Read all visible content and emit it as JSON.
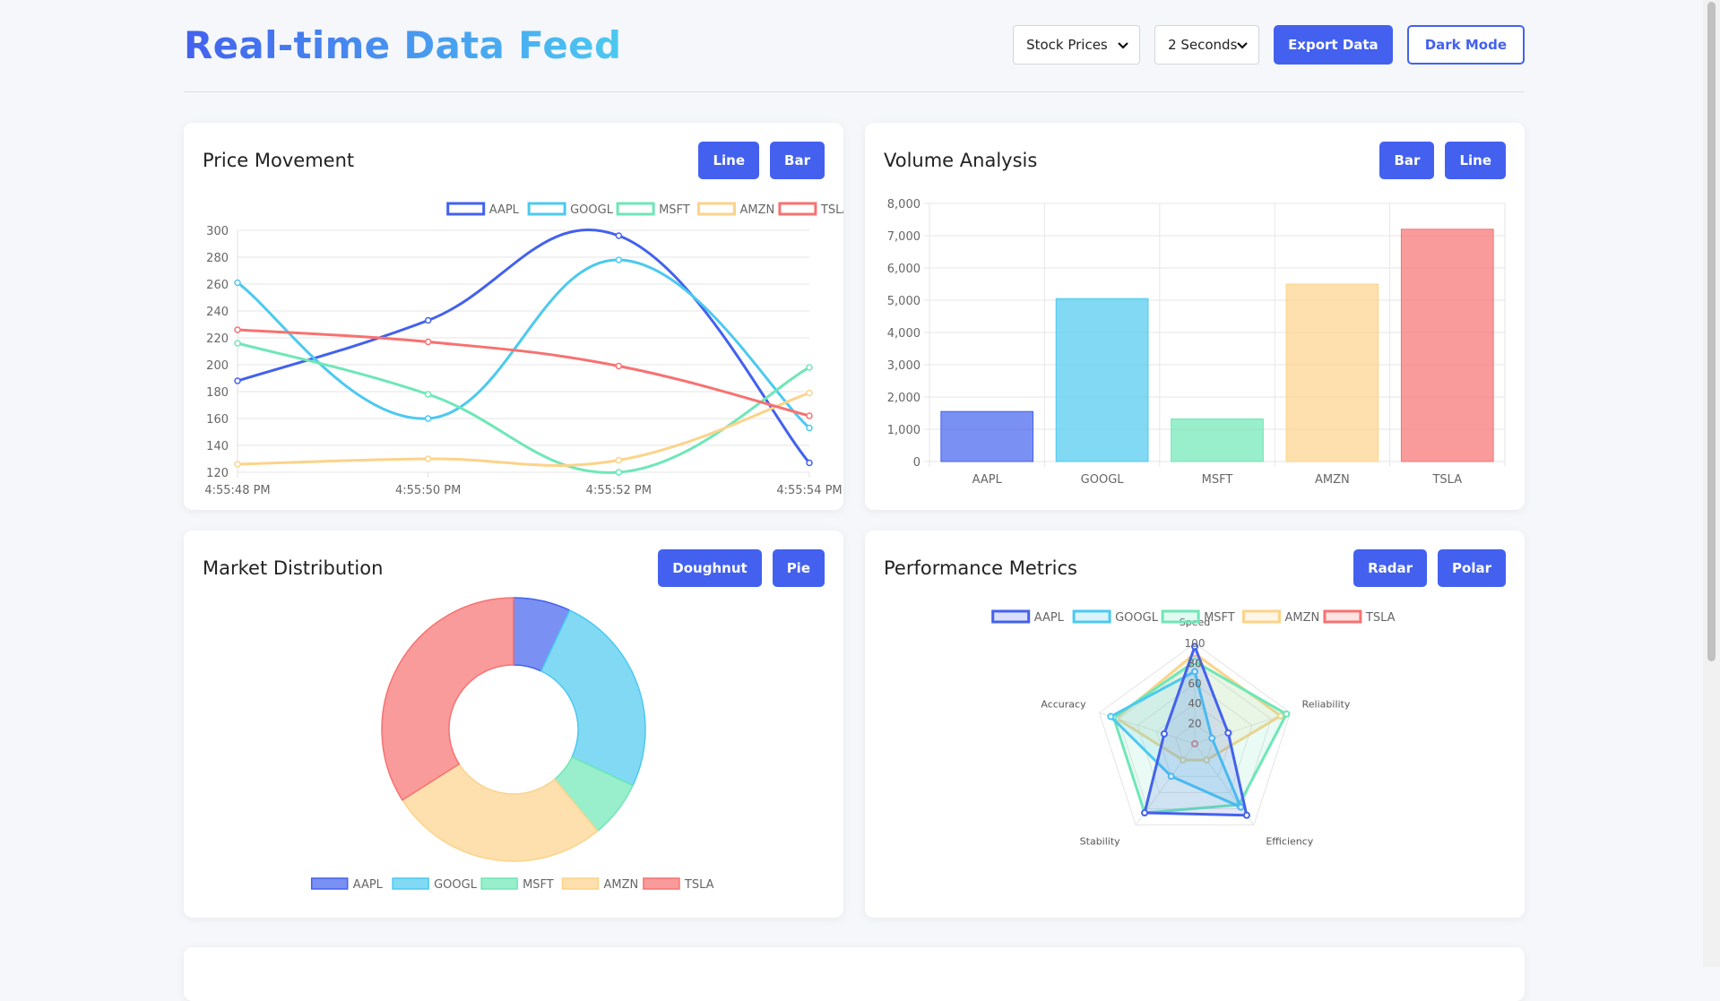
{
  "header": {
    "title": "Real-time Data Feed",
    "data_select": "Stock Prices",
    "interval_select": "2 Seconds",
    "export_label": "Export Data",
    "dark_mode_label": "Dark Mode"
  },
  "colors": {
    "accent": "#4361ee",
    "AAPL": "#4361ee",
    "GOOGL": "#4cc9f0",
    "MSFT": "#6ee7b7",
    "AMZN": "#fcd38a",
    "TSLA": "#f87171"
  },
  "cards": {
    "price": {
      "title": "Price Movement",
      "btn1": "Line",
      "btn2": "Bar"
    },
    "volume": {
      "title": "Volume Analysis",
      "btn1": "Bar",
      "btn2": "Line"
    },
    "distribution": {
      "title": "Market Distribution",
      "btn1": "Doughnut",
      "btn2": "Pie"
    },
    "performance": {
      "title": "Performance Metrics",
      "btn1": "Radar",
      "btn2": "Polar"
    }
  },
  "chart_data": [
    {
      "type": "line",
      "x": [
        "4:55:48 PM",
        "4:55:50 PM",
        "4:55:52 PM",
        "4:55:54 PM"
      ],
      "series": [
        {
          "name": "AAPL",
          "values": [
            188,
            233,
            296,
            127
          ]
        },
        {
          "name": "GOOGL",
          "values": [
            261,
            160,
            278,
            153
          ]
        },
        {
          "name": "MSFT",
          "values": [
            216,
            178,
            120,
            198
          ]
        },
        {
          "name": "AMZN",
          "values": [
            126,
            130,
            129,
            179
          ]
        },
        {
          "name": "TSLA",
          "values": [
            226,
            217,
            199,
            162
          ]
        }
      ],
      "ylim": [
        120,
        300
      ],
      "yticks": [
        "300",
        "280",
        "260",
        "240",
        "220",
        "200",
        "180",
        "160",
        "140",
        "120"
      ],
      "legend": "top",
      "grid": true
    },
    {
      "type": "bar",
      "categories": [
        "AAPL",
        "GOOGL",
        "MSFT",
        "AMZN",
        "TSLA"
      ],
      "values": [
        1550,
        5050,
        1320,
        5500,
        7200
      ],
      "ylim": [
        0,
        8000
      ],
      "yticks": [
        "8,000",
        "7,000",
        "6,000",
        "5,000",
        "4,000",
        "3,000",
        "2,000",
        "1,000",
        "0"
      ],
      "grid": true
    },
    {
      "type": "pie",
      "variant": "doughnut",
      "labels": [
        "AAPL",
        "GOOGL",
        "MSFT",
        "AMZN",
        "TSLA"
      ],
      "values": [
        7,
        25,
        7,
        27,
        34
      ],
      "legend": "bottom"
    },
    {
      "type": "radar",
      "axes": [
        "Speed",
        "Reliability",
        "Efficiency",
        "Stability",
        "Accuracy"
      ],
      "rmax": 100,
      "rticks": [
        "100",
        "80",
        "60",
        "40",
        "20"
      ],
      "series": [
        {
          "name": "AAPL",
          "values": [
            97,
            35,
            88,
            85,
            32
          ]
        },
        {
          "name": "GOOGL",
          "values": [
            72,
            18,
            78,
            40,
            88
          ]
        },
        {
          "name": "MSFT",
          "values": [
            82,
            96,
            75,
            85,
            85
          ]
        },
        {
          "name": "AMZN",
          "values": [
            90,
            90,
            20,
            20,
            82
          ]
        },
        {
          "name": "TSLA",
          "values": [
            0,
            0,
            0,
            0,
            0
          ]
        }
      ],
      "legend": "top"
    }
  ]
}
